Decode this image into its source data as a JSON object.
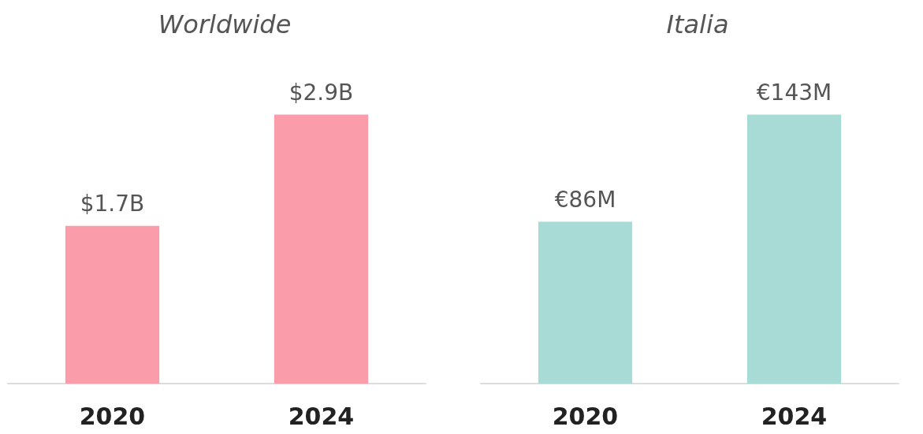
{
  "chart_data": [
    {
      "type": "bar",
      "title": "Worldwide",
      "categories": [
        "2020",
        "2024"
      ],
      "values": [
        1.7,
        2.9
      ],
      "value_labels": [
        "$1.7B",
        "$2.9B"
      ],
      "color": "#fa9ca9"
    },
    {
      "type": "bar",
      "title": "Italia",
      "categories": [
        "2020",
        "2024"
      ],
      "values": [
        86,
        143
      ],
      "value_labels": [
        "€86M",
        "€143M"
      ],
      "color": "#a9dbd6"
    }
  ]
}
